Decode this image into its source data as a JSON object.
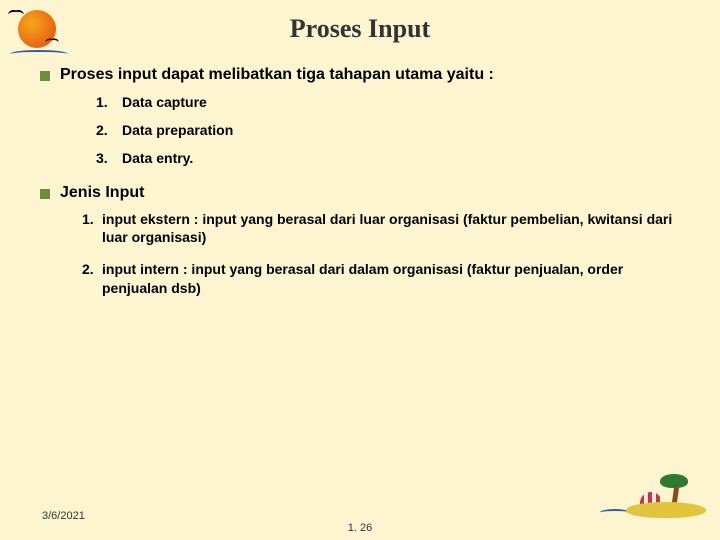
{
  "colors": {
    "background": "#fdf5d0",
    "bullet_square": "#6a8e3a",
    "title_text": "#333333",
    "body_text": "#000000"
  },
  "typography": {
    "title_family": "Times New Roman",
    "title_size_pt": 20,
    "title_weight": "bold",
    "body_family": "Arial",
    "body_size_pt": 12,
    "list_size_pt": 11,
    "list_weight": "bold"
  },
  "title": "Proses Input",
  "bullets": {
    "b1": {
      "text": "Proses input dapat melibatkan tiga tahapan utama yaitu :",
      "items": [
        {
          "num": "1.",
          "text": "Data capture"
        },
        {
          "num": "2.",
          "text": "Data preparation"
        },
        {
          "num": "3.",
          "text": "Data entry."
        }
      ]
    },
    "b2": {
      "text": "Jenis Input",
      "items": [
        {
          "num": "1.",
          "text": "input ekstern : input yang berasal dari luar organisasi (faktur pembelian, kwitansi dari luar organisasi)"
        },
        {
          "num": "2.",
          "text": "input intern : input yang berasal dari dalam organisasi (faktur penjualan, order penjualan dsb)"
        }
      ]
    }
  },
  "footer": {
    "date": "3/6/2021",
    "page": "1. 26"
  }
}
